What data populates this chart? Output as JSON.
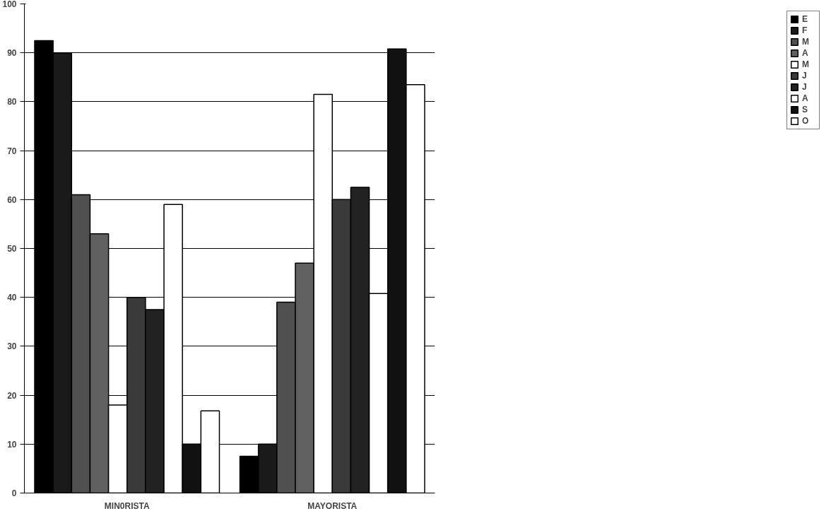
{
  "chart_data": {
    "type": "bar",
    "categories": [
      "MIN0RISTA",
      "MAYORISTA"
    ],
    "series": [
      {
        "name": "E",
        "color": "#000000",
        "values": [
          92.5,
          7.5
        ]
      },
      {
        "name": "F",
        "color": "#1a1a1a",
        "values": [
          90,
          10
        ]
      },
      {
        "name": "M",
        "color": "#505050",
        "values": [
          61,
          39
        ]
      },
      {
        "name": "A",
        "color": "#606060",
        "values": [
          53,
          47
        ]
      },
      {
        "name": "M",
        "color": "#ffffff",
        "values": [
          18,
          81.5
        ]
      },
      {
        "name": "J",
        "color": "#3a3a3a",
        "values": [
          40,
          60
        ]
      },
      {
        "name": "J",
        "color": "#222222",
        "values": [
          37.5,
          62.5
        ]
      },
      {
        "name": "A",
        "color": "#ffffff",
        "values": [
          59,
          40.8
        ]
      },
      {
        "name": "S",
        "color": "#111111",
        "values": [
          10,
          90.8
        ]
      },
      {
        "name": "O",
        "color": "#ffffff",
        "values": [
          16.8,
          83.5
        ]
      }
    ],
    "ylim": [
      0,
      100
    ],
    "yticks": [
      0,
      10,
      20,
      30,
      40,
      50,
      60,
      70,
      80,
      90,
      100
    ],
    "grid": "y",
    "legend": "right"
  }
}
